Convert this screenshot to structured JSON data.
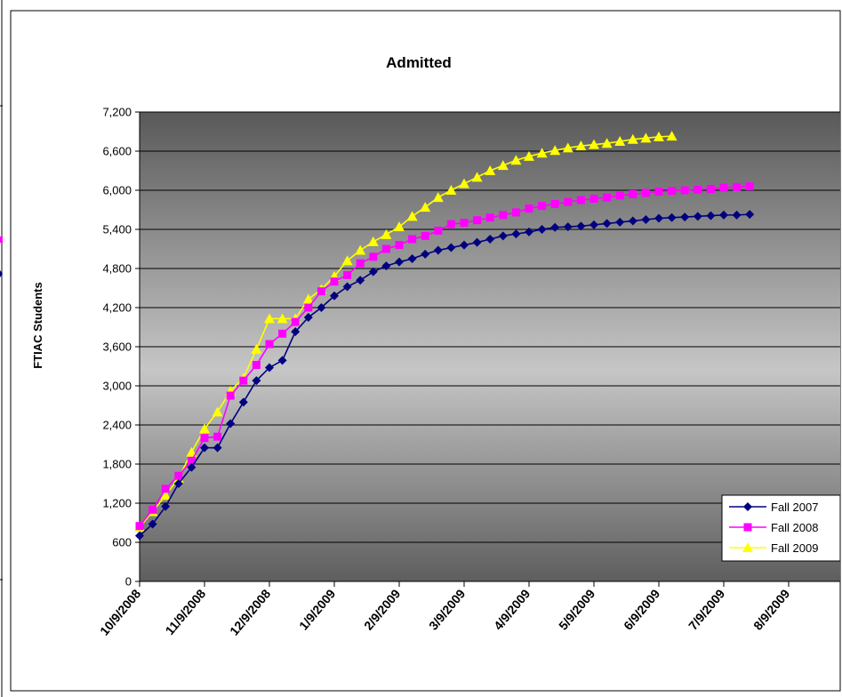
{
  "chart_data": {
    "type": "line",
    "title": "Admitted",
    "xlabel": "",
    "ylabel": "FTIAC Students",
    "ylim": [
      0,
      7200
    ],
    "y_ticks": [
      "0",
      "600",
      "1,200",
      "1,800",
      "2,400",
      "3,000",
      "3,600",
      "4,200",
      "4,800",
      "5,400",
      "6,000",
      "6,600",
      "7,200"
    ],
    "x_ticks": [
      "10/9/2008",
      "11/9/2008",
      "12/9/2008",
      "1/9/2009",
      "2/9/2009",
      "3/9/2009",
      "4/9/2009",
      "5/9/2009",
      "6/9/2009",
      "7/9/2009",
      "8/9/2009"
    ],
    "grid": true,
    "legend_position": "bottom-right",
    "series": [
      {
        "name": "Fall 2007",
        "color": "#000080",
        "marker": "diamond",
        "values": [
          700,
          880,
          1150,
          1500,
          1750,
          2050,
          2050,
          2420,
          2750,
          3080,
          3280,
          3390,
          3830,
          4050,
          4200,
          4380,
          4520,
          4620,
          4750,
          4840,
          4900,
          4950,
          5020,
          5080,
          5120,
          5160,
          5200,
          5250,
          5300,
          5330,
          5360,
          5400,
          5430,
          5440,
          5450,
          5470,
          5490,
          5510,
          5530,
          5550,
          5570,
          5580,
          5590,
          5600,
          5610,
          5620,
          5620,
          5630
        ]
      },
      {
        "name": "Fall 2008",
        "color": "#ff00ff",
        "marker": "square",
        "values": [
          850,
          1100,
          1420,
          1620,
          1850,
          2200,
          2220,
          2850,
          3080,
          3320,
          3640,
          3800,
          3980,
          4200,
          4450,
          4600,
          4700,
          4880,
          4980,
          5100,
          5160,
          5250,
          5300,
          5380,
          5480,
          5500,
          5540,
          5580,
          5620,
          5660,
          5720,
          5760,
          5790,
          5820,
          5850,
          5870,
          5890,
          5920,
          5940,
          5960,
          5980,
          5990,
          6000,
          6010,
          6020,
          6040,
          6050,
          6060
        ]
      },
      {
        "name": "Fall 2009",
        "color": "#ffff00",
        "marker": "triangle",
        "values": [
          830,
          1070,
          1320,
          1580,
          1980,
          2340,
          2600,
          2920,
          3120,
          3560,
          4030,
          4030,
          4030,
          4330,
          4480,
          4680,
          4920,
          5080,
          5210,
          5320,
          5440,
          5600,
          5740,
          5890,
          6000,
          6100,
          6200,
          6300,
          6380,
          6460,
          6520,
          6570,
          6610,
          6650,
          6680,
          6700,
          6720,
          6750,
          6780,
          6800,
          6820,
          6830
        ]
      }
    ]
  }
}
